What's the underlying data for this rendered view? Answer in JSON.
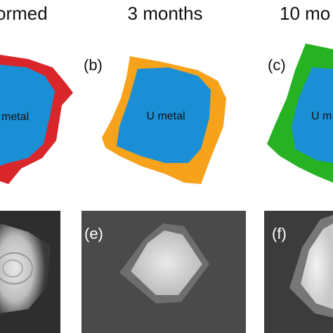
{
  "headers": [
    "ormed",
    "3 months",
    "10 mo"
  ],
  "top_row": [
    {
      "text": "metal"
    },
    {
      "label": "(b)",
      "text": "U metal"
    },
    {
      "label": "(c)",
      "text": "U m"
    }
  ],
  "bottom_row": [
    {
      "label": "(e)"
    },
    {
      "label": "(f)"
    }
  ]
}
